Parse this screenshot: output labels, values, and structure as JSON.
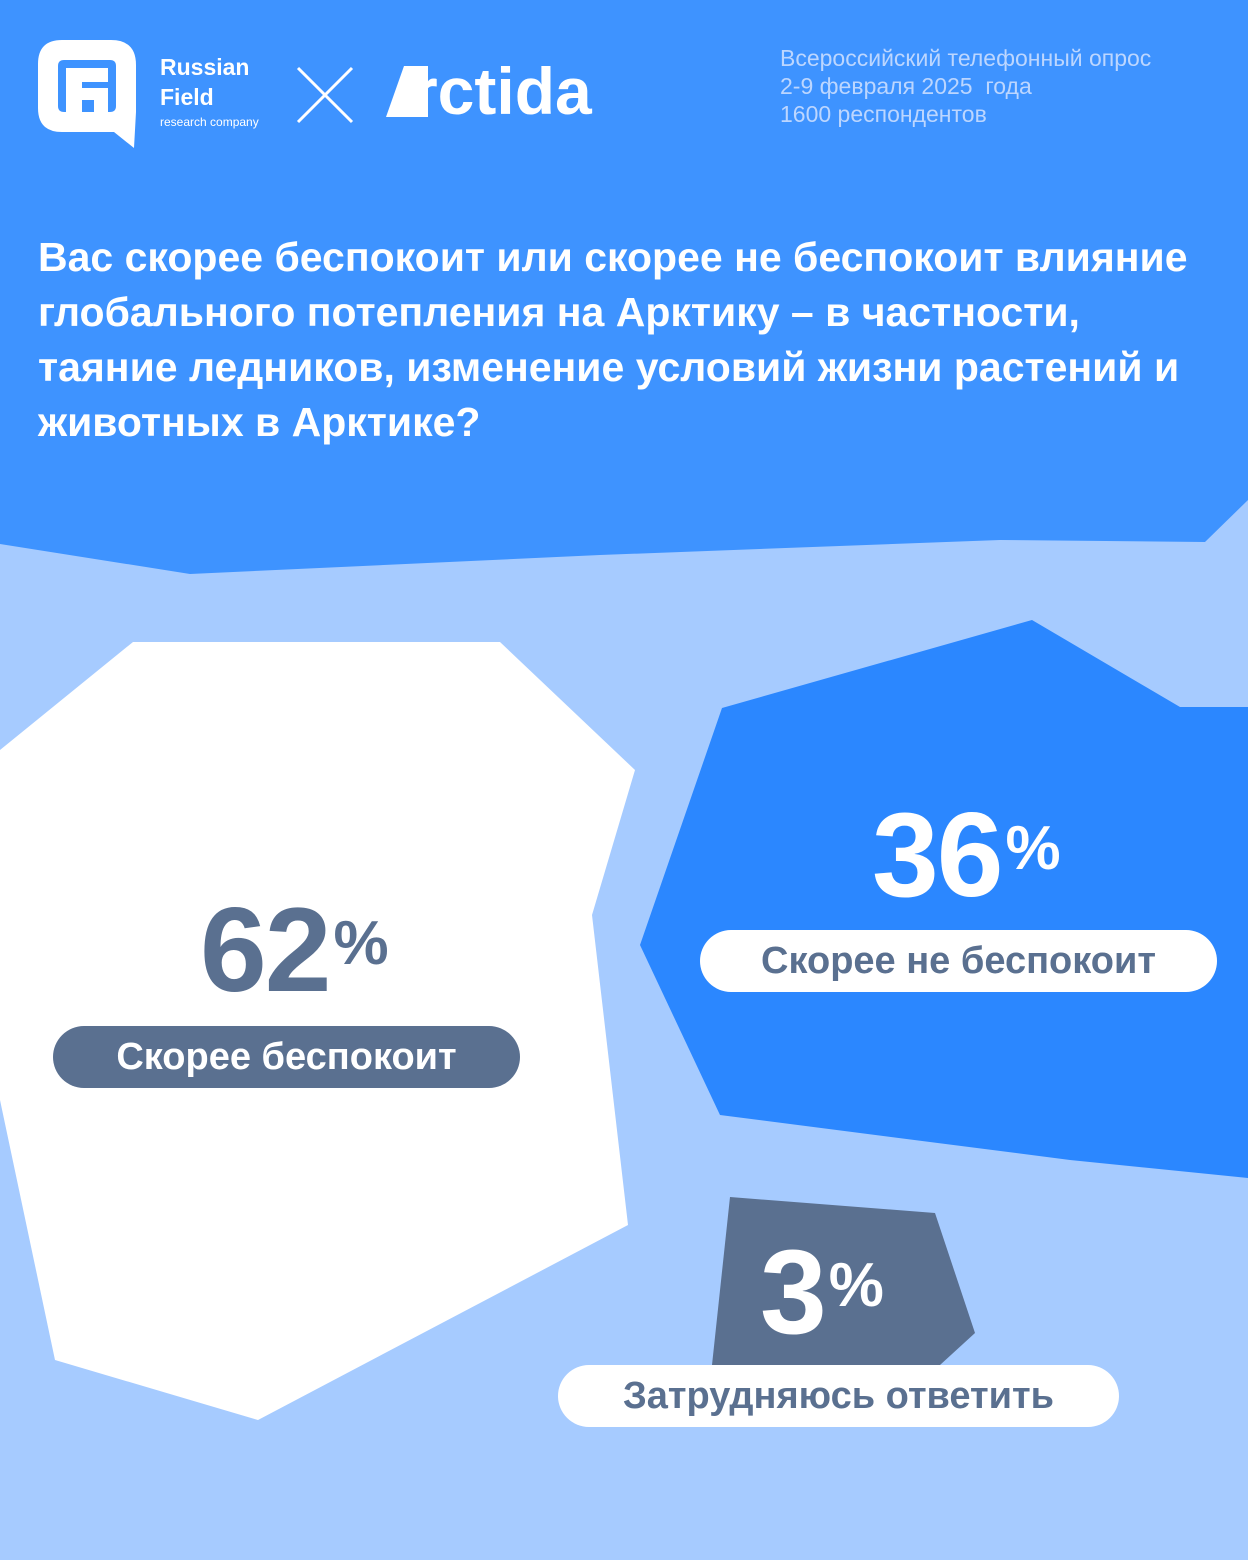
{
  "colors": {
    "top_blue": "#3e93ff",
    "light_blue": "#a6cbff",
    "card_white": "#ffffff",
    "card_blue": "#2b87ff",
    "card_slate": "#5a7090",
    "text_white": "#ffffff",
    "text_slate": "#5a7090"
  },
  "header": {
    "rf_logo_line1": "Russian",
    "rf_logo_line2": "Field",
    "rf_logo_sub": "research company",
    "arctida_logo_text": "rctida",
    "survey_info": "Всероссийский телефонный опрос\n2-9 февраля 2025  года\n1600 респондентов",
    "icons": [
      "rf-logo-icon",
      "cross-icon",
      "arctida-a-icon"
    ]
  },
  "question": "Вас скорее беспокоит или скорее не беспокоит влияние глобального потепления на Арктику – в частности, таяние ледников, изменение условий жизни растений и животных в Арктике?",
  "chart_data": {
    "type": "pie",
    "title": "Вас скорее беспокоит или скорее не беспокоит влияние глобального потепления на Арктику – в частности, таяние ледников, изменение условий жизни растений и животных в Арктике?",
    "unit": "%",
    "categories": [
      "Скорее беспокоит",
      "Скорее не беспокоит",
      "Затрудняюсь ответить"
    ],
    "values": [
      62,
      36,
      3
    ],
    "value_labels": [
      "62",
      "36",
      "3"
    ],
    "pct_sign": "%"
  }
}
